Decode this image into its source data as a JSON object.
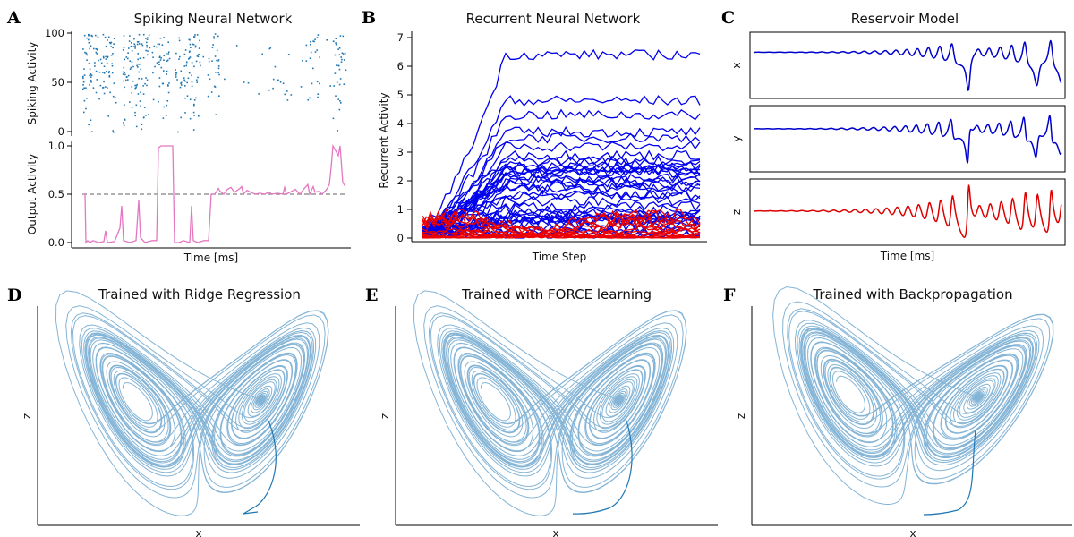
{
  "colors": {
    "spike": "#1f77b4",
    "output": "#e377c2",
    "rnn_blue": "#0000ee",
    "rnn_red": "#ee0000",
    "reservoir_blue": "#0000cc",
    "reservoir_red": "#dd0000",
    "attractor": "#1f77b4",
    "threshold": "#808080"
  },
  "chart_data": [
    {
      "id": "A",
      "type": "scatter",
      "letter": "A",
      "title": "Spiking Neural Network",
      "subplots": [
        {
          "type": "scatter",
          "ylabel": "Spiking Activity",
          "yticks": [
            0,
            50,
            100
          ],
          "ylim": [
            0,
            100
          ],
          "description": "raster of neuron spikes"
        },
        {
          "type": "line",
          "ylabel": "Output Activity",
          "xlabel": "Time [ms]",
          "yticks": [
            0.0,
            0.5,
            1.0
          ],
          "ylim": [
            0,
            1
          ],
          "threshold": 0.5
        }
      ],
      "tick_labels_top": [
        "0",
        "50",
        "100"
      ],
      "tick_labels_bottom": [
        "0.0",
        "0.5",
        "1.0"
      ]
    },
    {
      "id": "B",
      "type": "line",
      "letter": "B",
      "title": "Recurrent Neural Network",
      "xlabel": "Time Step",
      "ylabel": "Recurrent Activity",
      "ylim": [
        0,
        7
      ],
      "yticks": [
        "0",
        "1",
        "2",
        "3",
        "4",
        "5",
        "6",
        "7"
      ],
      "series": [
        {
          "name": "blue units",
          "count": 40,
          "final_values": [
            6.4,
            4.8,
            4.3,
            3.7,
            3.5,
            3.2,
            2.9,
            2.7,
            2.5,
            2.3,
            2.1,
            1.9,
            1.7,
            1.5,
            1.3,
            1.1,
            0.9,
            0.7,
            0.5,
            0.3
          ]
        },
        {
          "name": "red units",
          "count": 15,
          "range": [
            0,
            1.3
          ]
        }
      ]
    },
    {
      "id": "C",
      "type": "line",
      "letter": "C",
      "title": "Reservoir Model",
      "xlabel": "Time [ms]",
      "subplots": [
        {
          "ylabel": "x"
        },
        {
          "ylabel": "y"
        },
        {
          "ylabel": "z"
        }
      ]
    },
    {
      "id": "D",
      "type": "line",
      "letter": "D",
      "title": "Trained with Ridge Regression",
      "xlabel": "x",
      "ylabel": "z",
      "variant": "ridge"
    },
    {
      "id": "E",
      "type": "line",
      "letter": "E",
      "title": "Trained with FORCE learning",
      "xlabel": "x",
      "ylabel": "z",
      "variant": "force"
    },
    {
      "id": "F",
      "type": "line",
      "letter": "F",
      "title": "Trained with Backpropagation",
      "xlabel": "x",
      "ylabel": "z",
      "variant": "backprop"
    }
  ]
}
